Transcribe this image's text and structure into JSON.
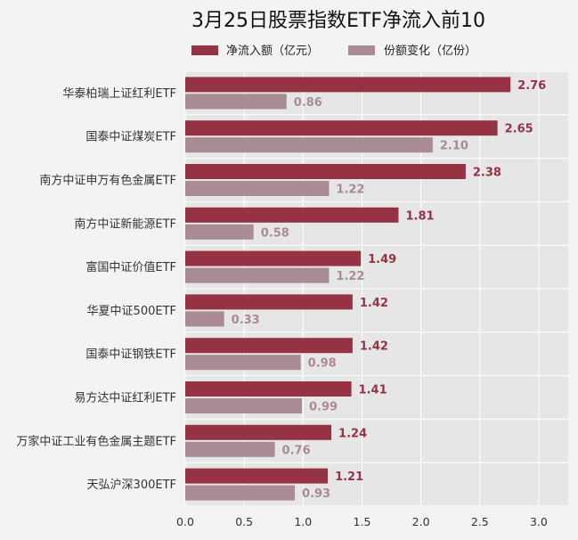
{
  "chart_data": {
    "type": "bar",
    "orientation": "horizontal",
    "title": "3月25日股票指数ETF净流入前10",
    "xlabel": "",
    "ylabel": "",
    "xlim": [
      0,
      3.25
    ],
    "xticks": [
      0.0,
      0.5,
      1.0,
      1.5,
      2.0,
      2.5,
      3.0
    ],
    "xtick_labels": [
      "0.0",
      "0.5",
      "1.0",
      "1.5",
      "2.0",
      "2.5",
      "3.0"
    ],
    "grid": true,
    "legend": "top-center",
    "categories": [
      "华泰柏瑞上证红利ETF",
      "国泰中证煤炭ETF",
      "南方中证申万有色金属ETF",
      "南方中证新能源ETF",
      "富国中证价值ETF",
      "华夏中证500ETF",
      "国泰中证钢铁ETF",
      "易方达中证红利ETF",
      "万家中证工业有色金属主题ETF",
      "天弘沪深300ETF"
    ],
    "series": [
      {
        "name": "净流入额（亿元）",
        "color": "#953344",
        "values": [
          2.76,
          2.65,
          2.38,
          1.81,
          1.49,
          1.42,
          1.42,
          1.41,
          1.24,
          1.21
        ],
        "labels": [
          "2.76",
          "2.65",
          "2.38",
          "1.81",
          "1.49",
          "1.42",
          "1.42",
          "1.41",
          "1.24",
          "1.21"
        ]
      },
      {
        "name": "份额变化（亿份）",
        "color": "#a98b94",
        "values": [
          0.86,
          2.1,
          1.22,
          0.58,
          1.22,
          0.33,
          0.98,
          0.99,
          0.76,
          0.93
        ],
        "labels": [
          "0.86",
          "2.10",
          "1.22",
          "0.58",
          "1.22",
          "0.33",
          "0.98",
          "0.99",
          "0.76",
          "0.93"
        ]
      }
    ]
  },
  "colors": {
    "background": "#f3f3f3",
    "plot_background": "#e6e6e6",
    "grid": "#ffffff"
  }
}
